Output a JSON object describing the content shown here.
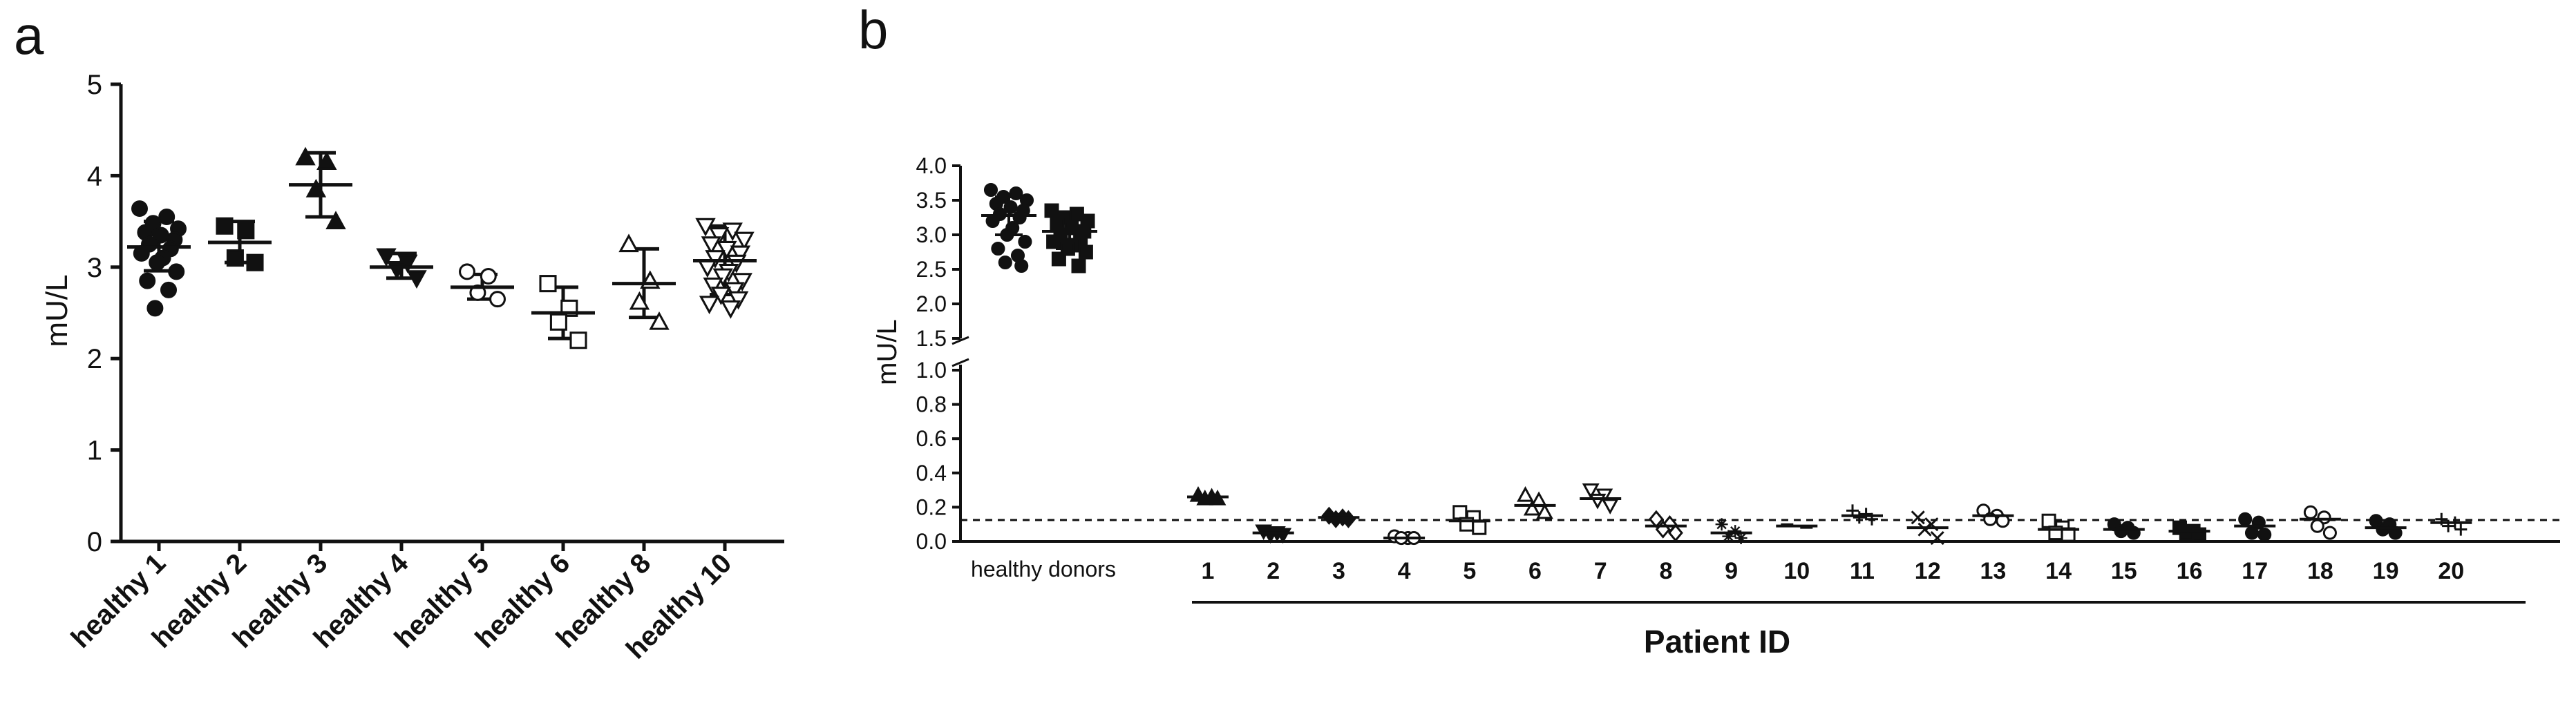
{
  "chart_data": [
    {
      "panel": "a",
      "type": "scatter",
      "ylabel": "mU/L",
      "ylim": [
        0,
        5
      ],
      "yticks": [
        "0",
        "1",
        "2",
        "3",
        "4",
        "5"
      ],
      "categories": [
        "healthy 1",
        "healthy 2",
        "healthy 3",
        "healthy 4",
        "healthy 5",
        "healthy 6",
        "healthy 8",
        "healthy 10"
      ],
      "series": [
        {
          "category": "healthy 1",
          "marker": "circle-filled",
          "values": [
            3.64,
            3.55,
            3.48,
            3.42,
            3.38,
            3.35,
            3.3,
            3.25,
            3.2,
            3.15,
            3.1,
            3.05,
            2.95,
            2.85,
            2.75,
            2.55
          ],
          "mean": 3.22,
          "sd_low": 2.96,
          "sd_high": 3.5
        },
        {
          "category": "healthy 2",
          "marker": "square-filled",
          "values": [
            3.45,
            3.4,
            3.1,
            3.05
          ],
          "mean": 3.27,
          "sd_low": 3.05,
          "sd_high": 3.5
        },
        {
          "category": "healthy 3",
          "marker": "triangle-up-filled",
          "values": [
            4.2,
            4.15,
            3.85,
            3.5
          ],
          "mean": 3.9,
          "sd_low": 3.55,
          "sd_high": 4.25
        },
        {
          "category": "healthy 4",
          "marker": "triangle-down-filled",
          "values": [
            3.12,
            3.05,
            2.98,
            2.88
          ],
          "mean": 3.0,
          "sd_low": 2.88,
          "sd_high": 3.15
        },
        {
          "category": "healthy 5",
          "marker": "circle-open",
          "values": [
            2.95,
            2.9,
            2.72,
            2.65
          ],
          "mean": 2.78,
          "sd_low": 2.65,
          "sd_high": 2.92
        },
        {
          "category": "healthy 6",
          "marker": "square-open",
          "values": [
            2.82,
            2.55,
            2.4,
            2.2
          ],
          "mean": 2.5,
          "sd_low": 2.22,
          "sd_high": 2.78
        },
        {
          "category": "healthy 8",
          "marker": "triangle-up-open",
          "values": [
            3.25,
            2.85,
            2.62,
            2.4
          ],
          "mean": 2.82,
          "sd_low": 2.45,
          "sd_high": 3.2
        },
        {
          "category": "healthy 10",
          "marker": "triangle-down-open",
          "values": [
            3.45,
            3.4,
            3.35,
            3.3,
            3.25,
            3.2,
            3.15,
            3.1,
            3.05,
            3.0,
            2.95,
            2.9,
            2.85,
            2.8,
            2.75,
            2.7,
            2.65,
            2.6,
            2.55
          ],
          "mean": 3.07,
          "sd_low": 2.7,
          "sd_high": 3.45
        }
      ]
    },
    {
      "panel": "b",
      "type": "scatter",
      "ylabel": "mU/L",
      "xlabel": "Patient ID",
      "group_label": "healthy donors",
      "y_upper_ticks": [
        "1.5",
        "2.0",
        "2.5",
        "3.0",
        "3.5",
        "4.0"
      ],
      "y_lower_ticks": [
        "0.0",
        "0.2",
        "0.4",
        "0.6",
        "0.8",
        "1.0"
      ],
      "y_upper_range": [
        1.5,
        4.0
      ],
      "y_lower_range": [
        0.0,
        1.0
      ],
      "threshold": 0.125,
      "healthy_groups": [
        {
          "marker": "circle-filled",
          "values": [
            3.65,
            3.6,
            3.55,
            3.5,
            3.45,
            3.4,
            3.35,
            3.3,
            3.25,
            3.2,
            3.1,
            3.0,
            2.9,
            2.8,
            2.7,
            2.6,
            2.55
          ],
          "mean": 3.28,
          "sd_low": 3.0,
          "sd_high": 3.55
        },
        {
          "marker": "square-filled",
          "values": [
            3.35,
            3.3,
            3.25,
            3.2,
            3.15,
            3.1,
            3.05,
            3.0,
            2.95,
            2.9,
            2.85,
            2.8,
            2.75,
            2.65,
            2.55
          ],
          "mean": 3.05,
          "sd_low": 2.8,
          "sd_high": 3.3
        }
      ],
      "patients": [
        {
          "id": "1",
          "marker": "triangle-up-filled",
          "values": [
            0.27,
            0.26,
            0.25,
            0.25
          ],
          "mean": 0.26
        },
        {
          "id": "2",
          "marker": "triangle-down-filled",
          "values": [
            0.06,
            0.05,
            0.04,
            0.04
          ],
          "mean": 0.05
        },
        {
          "id": "3",
          "marker": "diamond-filled",
          "values": [
            0.15,
            0.14,
            0.13,
            0.13
          ],
          "mean": 0.14
        },
        {
          "id": "4",
          "marker": "circle-open",
          "values": [
            0.03,
            0.02,
            0.02,
            0.02
          ],
          "mean": 0.02
        },
        {
          "id": "5",
          "marker": "square-open",
          "values": [
            0.17,
            0.14,
            0.1,
            0.08
          ],
          "mean": 0.12
        },
        {
          "id": "6",
          "marker": "triangle-up-open",
          "values": [
            0.27,
            0.24,
            0.19,
            0.17
          ],
          "mean": 0.21
        },
        {
          "id": "7",
          "marker": "triangle-down-open",
          "values": [
            0.3,
            0.27,
            0.24,
            0.21
          ],
          "mean": 0.25
        },
        {
          "id": "8",
          "marker": "diamond-open",
          "values": [
            0.13,
            0.1,
            0.07,
            0.05
          ],
          "mean": 0.09
        },
        {
          "id": "9",
          "marker": "star",
          "values": [
            0.1,
            0.06,
            0.03,
            0.02
          ],
          "mean": 0.05
        },
        {
          "id": "10",
          "marker": "dash",
          "values": [
            0.1,
            0.09,
            0.09,
            0.08
          ],
          "mean": 0.09
        },
        {
          "id": "11",
          "marker": "plus",
          "values": [
            0.18,
            0.16,
            0.14,
            0.13
          ],
          "mean": 0.15
        },
        {
          "id": "12",
          "marker": "x",
          "values": [
            0.14,
            0.1,
            0.07,
            0.02
          ],
          "mean": 0.08
        },
        {
          "id": "13",
          "marker": "circle-open",
          "values": [
            0.18,
            0.15,
            0.13,
            0.12
          ],
          "mean": 0.15
        },
        {
          "id": "14",
          "marker": "square-open",
          "values": [
            0.12,
            0.08,
            0.05,
            0.04
          ],
          "mean": 0.07
        },
        {
          "id": "15",
          "marker": "circle-filled",
          "values": [
            0.1,
            0.08,
            0.06,
            0.05
          ],
          "mean": 0.07
        },
        {
          "id": "16",
          "marker": "square-filled",
          "values": [
            0.08,
            0.06,
            0.05,
            0.04
          ],
          "mean": 0.06
        },
        {
          "id": "17",
          "marker": "circle-filled",
          "values": [
            0.13,
            0.11,
            0.05,
            0.04
          ],
          "mean": 0.09
        },
        {
          "id": "18",
          "marker": "circle-open",
          "values": [
            0.17,
            0.14,
            0.09,
            0.05
          ],
          "mean": 0.13
        },
        {
          "id": "19",
          "marker": "circle-filled",
          "values": [
            0.12,
            0.1,
            0.07,
            0.05
          ],
          "mean": 0.08
        },
        {
          "id": "20",
          "marker": "plus",
          "values": [
            0.13,
            0.11,
            0.09,
            0.07
          ],
          "mean": 0.11
        }
      ]
    }
  ],
  "panel_labels": {
    "a": "a",
    "b": "b"
  },
  "colors": {
    "ink": "#111111",
    "background": "#ffffff"
  }
}
